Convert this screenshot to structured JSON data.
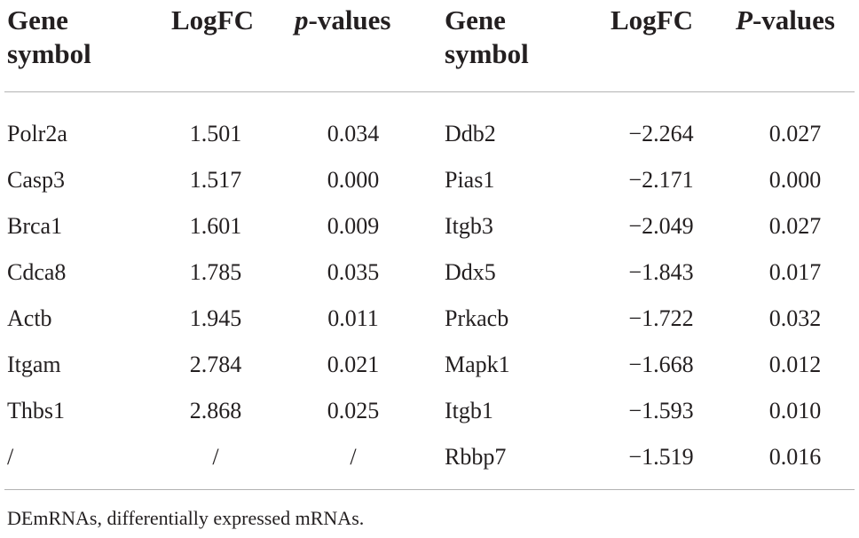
{
  "headers": {
    "gene_symbol_left": "Gene symbol",
    "logfc_left": "LogFC",
    "pvalue_left_italic": "p",
    "pvalue_left_rest": "-values",
    "gene_symbol_right": "Gene symbol",
    "logfc_right": "LogFC",
    "pvalue_right_italic": "P",
    "pvalue_right_rest": "-values"
  },
  "rows": [
    {
      "gene_l": "Polr2a",
      "logfc_l": "1.501",
      "p_l": "0.034",
      "gene_r": "Ddb2",
      "logfc_r": "−2.264",
      "p_r": "0.027"
    },
    {
      "gene_l": "Casp3",
      "logfc_l": "1.517",
      "p_l": "0.000",
      "gene_r": "Pias1",
      "logfc_r": "−2.171",
      "p_r": "0.000"
    },
    {
      "gene_l": "Brca1",
      "logfc_l": "1.601",
      "p_l": "0.009",
      "gene_r": "Itgb3",
      "logfc_r": "−2.049",
      "p_r": "0.027"
    },
    {
      "gene_l": "Cdca8",
      "logfc_l": "1.785",
      "p_l": "0.035",
      "gene_r": "Ddx5",
      "logfc_r": "−1.843",
      "p_r": "0.017"
    },
    {
      "gene_l": "Actb",
      "logfc_l": "1.945",
      "p_l": "0.011",
      "gene_r": "Prkacb",
      "logfc_r": "−1.722",
      "p_r": "0.032"
    },
    {
      "gene_l": "Itgam",
      "logfc_l": "2.784",
      "p_l": "0.021",
      "gene_r": "Mapk1",
      "logfc_r": "−1.668",
      "p_r": "0.012"
    },
    {
      "gene_l": "Thbs1",
      "logfc_l": "2.868",
      "p_l": "0.025",
      "gene_r": "Itgb1",
      "logfc_r": "−1.593",
      "p_r": "0.010"
    },
    {
      "gene_l": "/",
      "logfc_l": "/",
      "p_l": "/",
      "gene_r": "Rbbp7",
      "logfc_r": "−1.519",
      "p_r": "0.016"
    }
  ],
  "footnote": "DEmRNAs, differentially expressed mRNAs."
}
